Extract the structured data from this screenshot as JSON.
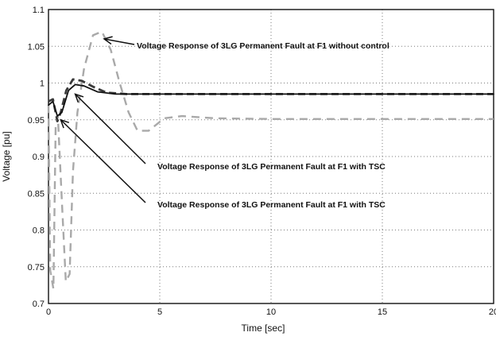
{
  "chart_data": {
    "type": "line",
    "title": "",
    "xlabel": "Time [sec]",
    "ylabel": "Voltage [pu]",
    "xlim": [
      0,
      20
    ],
    "ylim": [
      0.7,
      1.1
    ],
    "grid": true,
    "x_ticks": [
      "0",
      "5",
      "10",
      "15",
      "20"
    ],
    "y_ticks": [
      "0.7",
      "0.75",
      "0.8",
      "0.85",
      "0.9",
      "0.95",
      "1",
      "1.05",
      "1.1"
    ],
    "series": [
      {
        "style": "dashed",
        "color": "#a9a9a9",
        "points": [
          [
            0,
            0.97
          ],
          [
            0.08,
            0.745
          ],
          [
            0.22,
            0.72
          ],
          [
            0.32,
            0.94
          ],
          [
            0.42,
            0.955
          ],
          [
            0.6,
            0.84
          ],
          [
            0.78,
            0.73
          ],
          [
            0.95,
            0.74
          ],
          [
            1.1,
            0.88
          ],
          [
            1.3,
            0.96
          ],
          [
            1.6,
            1.02
          ],
          [
            2.0,
            1.065
          ],
          [
            2.4,
            1.07
          ],
          [
            2.8,
            1.045
          ],
          [
            3.2,
            1.0
          ],
          [
            3.6,
            0.96
          ],
          [
            4.0,
            0.935
          ],
          [
            4.5,
            0.935
          ],
          [
            5.2,
            0.952
          ],
          [
            6.0,
            0.955
          ],
          [
            7.5,
            0.952
          ],
          [
            10,
            0.951
          ],
          [
            15,
            0.951
          ],
          [
            20,
            0.951
          ]
        ]
      },
      {
        "style": "dashed",
        "color": "#3a3a3a",
        "points": [
          [
            0,
            0.975
          ],
          [
            0.2,
            0.978
          ],
          [
            0.4,
            0.948
          ],
          [
            0.55,
            0.96
          ],
          [
            0.8,
            0.99
          ],
          [
            1.1,
            1.005
          ],
          [
            1.5,
            1.003
          ],
          [
            2.0,
            0.995
          ],
          [
            2.6,
            0.987
          ],
          [
            3.5,
            0.985
          ],
          [
            5,
            0.985
          ],
          [
            10,
            0.985
          ],
          [
            15,
            0.985
          ],
          [
            20,
            0.985
          ]
        ]
      },
      {
        "style": "solid",
        "color": "#111111",
        "points": [
          [
            0,
            0.97
          ],
          [
            0.2,
            0.975
          ],
          [
            0.4,
            0.955
          ],
          [
            0.6,
            0.96
          ],
          [
            0.9,
            0.99
          ],
          [
            1.2,
            0.998
          ],
          [
            1.6,
            0.996
          ],
          [
            2.2,
            0.988
          ],
          [
            3.0,
            0.985
          ],
          [
            5,
            0.985
          ],
          [
            10,
            0.985
          ],
          [
            15,
            0.985
          ],
          [
            20,
            0.985
          ]
        ]
      }
    ],
    "annotations": [
      {
        "text": "Voltage Response of 3LG Permanent Fault at F1 without control",
        "arrow_to": [
          2.5,
          1.06
        ]
      },
      {
        "text": "Voltage Response of 3LG Permanent Fault at F1 with TSC",
        "arrow_to": [
          1.2,
          0.985
        ]
      },
      {
        "text": "Voltage Response of 3LG Permanent Fault at F1 with TSC",
        "arrow_to": [
          0.55,
          0.95
        ]
      }
    ]
  }
}
